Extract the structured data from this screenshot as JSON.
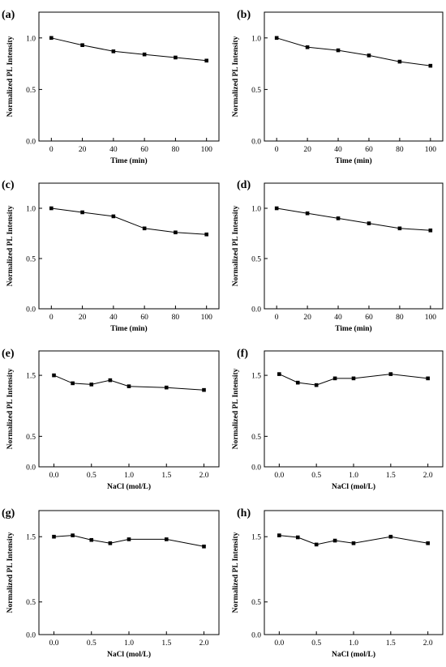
{
  "chart_data": [
    {
      "panel": "(a)",
      "type": "line",
      "xlabel": "Time (min)",
      "ylabel": "Normalized PL Intensity",
      "x": [
        0,
        20,
        40,
        60,
        80,
        100
      ],
      "values": [
        1.0,
        0.93,
        0.87,
        0.84,
        0.81,
        0.78
      ],
      "xlim": [
        -8,
        108
      ],
      "ylim": [
        0,
        1.25
      ],
      "xticks": [
        0,
        20,
        40,
        60,
        80,
        100
      ],
      "xtick_labels": [
        "0",
        "20",
        "40",
        "60",
        "80",
        "100"
      ],
      "yticks": [
        0,
        0.5,
        1.0
      ],
      "ytick_labels": [
        "0.0",
        "0.5",
        "1.0"
      ]
    },
    {
      "panel": "(b)",
      "type": "line",
      "xlabel": "Time (min)",
      "ylabel": "Normalized PL Intensity",
      "x": [
        0,
        20,
        40,
        60,
        80,
        100
      ],
      "values": [
        1.0,
        0.91,
        0.88,
        0.83,
        0.77,
        0.73
      ],
      "xlim": [
        -8,
        108
      ],
      "ylim": [
        0,
        1.25
      ],
      "xticks": [
        0,
        20,
        40,
        60,
        80,
        100
      ],
      "xtick_labels": [
        "0",
        "20",
        "40",
        "60",
        "80",
        "100"
      ],
      "yticks": [
        0,
        0.5,
        1.0
      ],
      "ytick_labels": [
        "0.0",
        "0.5",
        "1.0"
      ]
    },
    {
      "panel": "(c)",
      "type": "line",
      "xlabel": "Time (min)",
      "ylabel": "Normalized PL Intensity",
      "x": [
        0,
        20,
        40,
        60,
        80,
        100
      ],
      "values": [
        1.0,
        0.96,
        0.92,
        0.8,
        0.76,
        0.74
      ],
      "xlim": [
        -8,
        108
      ],
      "ylim": [
        0,
        1.25
      ],
      "xticks": [
        0,
        20,
        40,
        60,
        80,
        100
      ],
      "xtick_labels": [
        "0",
        "20",
        "40",
        "60",
        "80",
        "100"
      ],
      "yticks": [
        0,
        0.5,
        1.0
      ],
      "ytick_labels": [
        "0.0",
        "0.5",
        "1.0"
      ]
    },
    {
      "panel": "(d)",
      "type": "line",
      "xlabel": "Time (min)",
      "ylabel": "Normalized PL Intensity",
      "x": [
        0,
        20,
        40,
        60,
        80,
        100
      ],
      "values": [
        1.0,
        0.95,
        0.9,
        0.85,
        0.8,
        0.78
      ],
      "xlim": [
        -8,
        108
      ],
      "ylim": [
        0,
        1.25
      ],
      "xticks": [
        0,
        20,
        40,
        60,
        80,
        100
      ],
      "xtick_labels": [
        "0",
        "20",
        "40",
        "60",
        "80",
        "100"
      ],
      "yticks": [
        0,
        0.5,
        1.0
      ],
      "ytick_labels": [
        "0.0",
        "0.5",
        "1.0"
      ]
    },
    {
      "panel": "(e)",
      "type": "line",
      "xlabel": "NaCl (mol/L)",
      "ylabel": "Normalized PL Intensity",
      "x": [
        0,
        0.25,
        0.5,
        0.75,
        1.0,
        1.5,
        2.0
      ],
      "values": [
        1.5,
        1.37,
        1.35,
        1.42,
        1.32,
        1.3,
        1.26
      ],
      "xlim": [
        -0.2,
        2.2
      ],
      "ylim": [
        0,
        1.9
      ],
      "xticks": [
        0,
        0.5,
        1.0,
        1.5,
        2.0
      ],
      "xtick_labels": [
        "0.0",
        "0.5",
        "1.0",
        "1.5",
        "2.0"
      ],
      "yticks": [
        0,
        0.5,
        1.5
      ],
      "ytick_labels": [
        "0.0",
        "0.5",
        "1.5"
      ]
    },
    {
      "panel": "(f)",
      "type": "line",
      "xlabel": "NaCl (mol/L)",
      "ylabel": "Normalized PL Intensity",
      "x": [
        0,
        0.25,
        0.5,
        0.75,
        1.0,
        1.5,
        2.0
      ],
      "values": [
        1.52,
        1.38,
        1.34,
        1.45,
        1.45,
        1.52,
        1.45
      ],
      "xlim": [
        -0.2,
        2.2
      ],
      "ylim": [
        0,
        1.9
      ],
      "xticks": [
        0,
        0.5,
        1.0,
        1.5,
        2.0
      ],
      "xtick_labels": [
        "0.0",
        "0.5",
        "1.0",
        "1.5",
        "2.0"
      ],
      "yticks": [
        0,
        0.5,
        1.5
      ],
      "ytick_labels": [
        "0.0",
        "0.5",
        "1.5"
      ]
    },
    {
      "panel": "(g)",
      "type": "line",
      "xlabel": "NaCl (mol/L)",
      "ylabel": "Normalized PL Intensity",
      "x": [
        0,
        0.25,
        0.5,
        0.75,
        1.0,
        1.5,
        2.0
      ],
      "values": [
        1.5,
        1.52,
        1.45,
        1.4,
        1.46,
        1.46,
        1.35
      ],
      "xlim": [
        -0.2,
        2.2
      ],
      "ylim": [
        0,
        1.9
      ],
      "xticks": [
        0,
        0.5,
        1.0,
        1.5,
        2.0
      ],
      "xtick_labels": [
        "0.0",
        "0.5",
        "1.0",
        "1.5",
        "2.0"
      ],
      "yticks": [
        0,
        0.5,
        1.5
      ],
      "ytick_labels": [
        "0.0",
        "0.5",
        "1.5"
      ]
    },
    {
      "panel": "(h)",
      "type": "line",
      "xlabel": "NaCl (mol/L)",
      "ylabel": "Normalized PL Intensity",
      "x": [
        0,
        0.25,
        0.5,
        0.75,
        1.0,
        1.5,
        2.0
      ],
      "values": [
        1.52,
        1.49,
        1.38,
        1.44,
        1.4,
        1.5,
        1.4
      ],
      "xlim": [
        -0.2,
        2.2
      ],
      "ylim": [
        0,
        1.9
      ],
      "xticks": [
        0,
        0.5,
        1.0,
        1.5,
        2.0
      ],
      "xtick_labels": [
        "0.0",
        "0.5",
        "1.0",
        "1.5",
        "2.0"
      ],
      "yticks": [
        0,
        0.5,
        1.5
      ],
      "ytick_labels": [
        "0.0",
        "0.5",
        "1.5"
      ]
    }
  ]
}
